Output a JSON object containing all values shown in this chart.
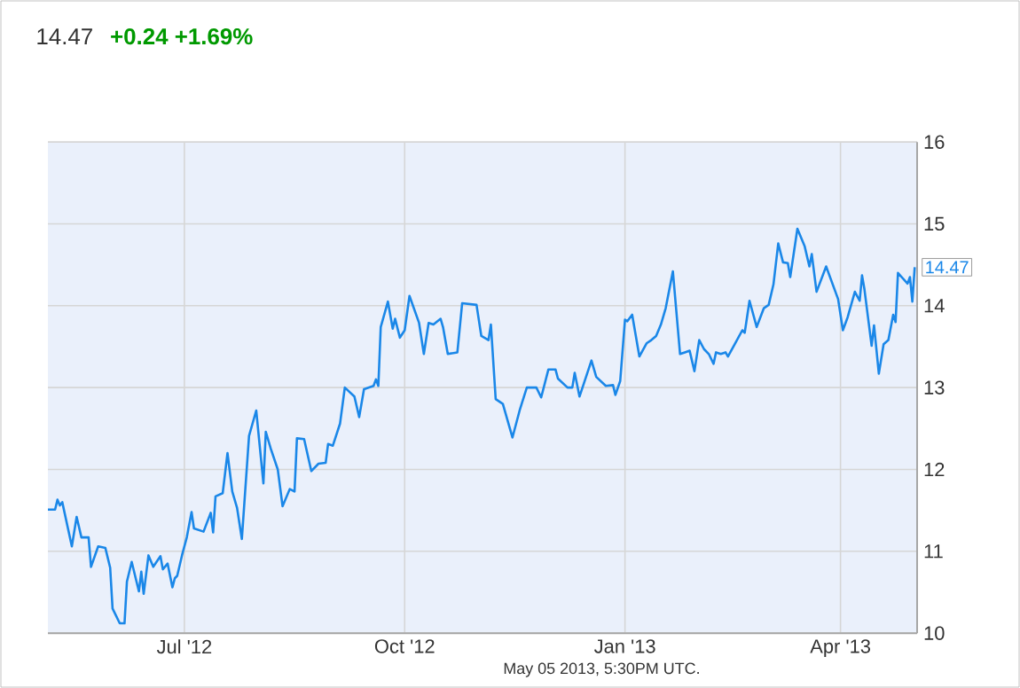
{
  "chart_data": {
    "type": "line",
    "title": "14.47",
    "subtitle": "+0.24  +1.69%",
    "x": [
      "2012-05-05",
      "2012-05-08",
      "2012-05-09",
      "2012-05-10",
      "2012-05-11",
      "2012-05-15",
      "2012-05-17",
      "2012-05-19",
      "2012-05-22",
      "2012-05-23",
      "2012-05-26",
      "2012-05-29",
      "2012-05-31",
      "2012-06-01",
      "2012-06-04",
      "2012-06-06",
      "2012-06-07",
      "2012-06-09",
      "2012-06-12",
      "2012-06-13",
      "2012-06-14",
      "2012-06-16",
      "2012-06-18",
      "2012-06-21",
      "2012-06-22",
      "2012-06-24",
      "2012-06-26",
      "2012-06-27",
      "2012-06-28",
      "2012-06-30",
      "2012-07-02",
      "2012-07-04",
      "2012-07-05",
      "2012-07-09",
      "2012-07-12",
      "2012-07-13",
      "2012-07-14",
      "2012-07-17",
      "2012-07-19",
      "2012-07-21",
      "2012-07-23",
      "2012-07-25",
      "2012-07-28",
      "2012-07-31",
      "2012-08-03",
      "2012-08-04",
      "2012-08-06",
      "2012-08-09",
      "2012-08-11",
      "2012-08-14",
      "2012-08-16",
      "2012-08-17",
      "2012-08-20",
      "2012-08-23",
      "2012-08-26",
      "2012-08-29",
      "2012-08-30",
      "2012-09-01",
      "2012-09-04",
      "2012-09-06",
      "2012-09-10",
      "2012-09-12",
      "2012-09-14",
      "2012-09-18",
      "2012-09-19",
      "2012-09-20",
      "2012-09-21",
      "2012-09-24",
      "2012-09-26",
      "2012-09-27",
      "2012-09-29",
      "2012-10-01",
      "2012-10-03",
      "2012-10-07",
      "2012-10-09",
      "2012-10-11",
      "2012-10-13",
      "2012-10-16",
      "2012-10-17",
      "2012-10-19",
      "2012-10-23",
      "2012-10-25",
      "2012-10-31",
      "2012-11-02",
      "2012-11-05",
      "2012-11-06",
      "2012-11-08",
      "2012-11-11",
      "2012-11-15",
      "2012-11-18",
      "2012-11-21",
      "2012-11-25",
      "2012-11-27",
      "2012-11-30",
      "2012-12-03",
      "2012-12-04",
      "2012-12-08",
      "2012-12-10",
      "2012-12-11",
      "2012-12-13",
      "2012-12-18",
      "2012-12-20",
      "2012-12-24",
      "2012-12-27",
      "2012-12-28",
      "2012-12-30",
      "2013-01-01",
      "2013-01-02",
      "2013-01-04",
      "2013-01-07",
      "2013-01-10",
      "2013-01-12",
      "2013-01-14",
      "2013-01-16",
      "2013-01-18",
      "2013-01-21",
      "2013-01-24",
      "2013-01-26",
      "2013-01-28",
      "2013-01-30",
      "2013-02-01",
      "2013-02-03",
      "2013-02-05",
      "2013-02-07",
      "2013-02-08",
      "2013-02-10",
      "2013-02-12",
      "2013-02-13",
      "2013-02-16",
      "2013-02-19",
      "2013-02-20",
      "2013-02-22",
      "2013-02-25",
      "2013-02-28",
      "2013-03-02",
      "2013-03-04",
      "2013-03-06",
      "2013-03-08",
      "2013-03-10",
      "2013-03-11",
      "2013-03-14",
      "2013-03-17",
      "2013-03-19",
      "2013-03-20",
      "2013-03-22",
      "2013-03-26",
      "2013-03-31",
      "2013-04-02",
      "2013-04-04",
      "2013-04-07",
      "2013-04-09",
      "2013-04-10",
      "2013-04-11",
      "2013-04-14",
      "2013-04-15",
      "2013-04-17",
      "2013-04-19",
      "2013-04-21",
      "2013-04-23",
      "2013-04-24",
      "2013-04-25",
      "2013-04-29",
      "2013-04-30",
      "2013-05-01",
      "2013-05-02"
    ],
    "series": [
      {
        "color": "#1a87e8",
        "values": [
          11.51,
          11.51,
          11.63,
          11.56,
          11.6,
          11.06,
          11.42,
          11.17,
          11.17,
          10.81,
          11.06,
          11.04,
          10.8,
          10.3,
          10.12,
          10.12,
          10.63,
          10.87,
          10.51,
          10.75,
          10.48,
          10.95,
          10.81,
          10.94,
          10.78,
          10.85,
          10.56,
          10.67,
          10.7,
          10.95,
          11.17,
          11.48,
          11.28,
          11.24,
          11.47,
          11.23,
          11.67,
          11.71,
          12.2,
          11.73,
          11.53,
          11.15,
          12.41,
          12.72,
          11.83,
          12.46,
          12.26,
          12.0,
          11.55,
          11.76,
          11.73,
          12.38,
          12.37,
          11.98,
          12.07,
          12.08,
          12.31,
          12.29,
          12.56,
          13.0,
          12.89,
          12.64,
          12.98,
          13.02,
          13.1,
          13.02,
          13.74,
          14.05,
          13.72,
          13.84,
          13.61,
          13.7,
          14.12,
          13.79,
          13.41,
          13.79,
          13.77,
          13.84,
          13.74,
          13.41,
          13.43,
          14.03,
          14.01,
          13.63,
          13.58,
          13.77,
          12.86,
          12.8,
          12.39,
          12.72,
          13.0,
          13.0,
          12.88,
          13.22,
          13.22,
          13.11,
          13.0,
          13.0,
          13.18,
          12.89,
          13.33,
          13.13,
          13.02,
          13.03,
          12.91,
          13.08,
          13.83,
          13.81,
          13.89,
          13.38,
          13.54,
          13.58,
          13.63,
          13.77,
          13.97,
          14.42,
          13.41,
          13.43,
          13.45,
          13.2,
          13.58,
          13.47,
          13.41,
          13.29,
          13.43,
          13.41,
          13.43,
          13.38,
          13.54,
          13.7,
          13.67,
          14.06,
          13.74,
          13.97,
          14.01,
          14.26,
          14.76,
          14.53,
          14.52,
          14.35,
          14.94,
          14.73,
          14.48,
          14.63,
          14.17,
          14.48,
          14.08,
          13.7,
          13.86,
          14.17,
          14.06,
          14.37,
          14.2,
          13.51,
          13.76,
          13.17,
          13.53,
          13.58,
          13.89,
          13.8,
          14.4,
          14.27,
          14.35,
          14.05,
          14.47
        ]
      }
    ],
    "xlim": [
      "2012-05-05",
      "2013-05-03"
    ],
    "xticks": [
      {
        "value": "2012-07-01",
        "label": "Jul '12"
      },
      {
        "value": "2012-10-01",
        "label": "Oct '12"
      },
      {
        "value": "2013-01-01",
        "label": "Jan '13"
      },
      {
        "value": "2013-04-01",
        "label": "Apr '13"
      }
    ],
    "ylim": [
      10,
      16
    ],
    "yticks": [
      10,
      11,
      12,
      13,
      14,
      15,
      16
    ],
    "grid": true,
    "annotations": [
      {
        "text": "14.47",
        "x": "2013-05-02",
        "y": 14.47
      },
      "May 05 2013, 5:30PM UTC."
    ]
  }
}
